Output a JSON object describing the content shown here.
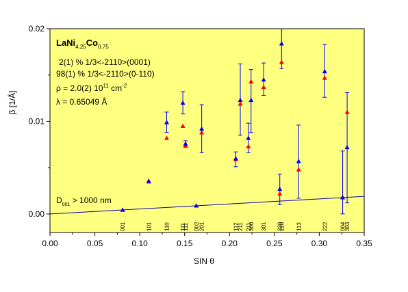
{
  "chart_data": {
    "type": "scatter",
    "xlabel": "SIN θ",
    "ylabel": "β [1/Å]",
    "xlim": [
      0.0,
      0.35
    ],
    "ylim": [
      -0.002,
      0.02
    ],
    "xticks": [
      "0.00",
      "0.05",
      "0.10",
      "0.15",
      "0.20",
      "0.25",
      "0.30",
      "0.35"
    ],
    "yticks": [
      "0.00",
      "0.01",
      "0.02"
    ],
    "grid": false,
    "background": "#ffff80",
    "colors": {
      "series_a": "#ff0000",
      "series_b": "#0000ff",
      "line": "#0000aa"
    },
    "annotations": {
      "formula_parts": [
        "LaNi",
        "4.25",
        "Co",
        "0.75"
      ],
      "line1": "2(1) %  1/3<-2110>(0001)",
      "line2": "98(1) %  1/3<-2110>(0-110)",
      "line3_parts": [
        "ρ = 2.0(2)  10",
        "11",
        " cm",
        "-2"
      ],
      "line4": "λ = 0.65049 Å",
      "dline_parts": [
        "D",
        "001",
        " > 1000 nm"
      ]
    },
    "line": {
      "x": [
        0.0,
        0.35
      ],
      "y": [
        0.0,
        0.0019
      ]
    },
    "points": [
      {
        "x": 0.081,
        "yr": 0.00045,
        "yb": 0.00045,
        "lo": null,
        "hi": null
      },
      {
        "x": 0.11,
        "yr": 0.0036,
        "yb": 0.0035,
        "lo": null,
        "hi": null
      },
      {
        "x": 0.13,
        "yr": 0.0082,
        "yb": 0.0099,
        "lo": 0.0088,
        "hi": 0.011
      },
      {
        "x": 0.148,
        "yr": 0.0095,
        "yb": 0.012,
        "lo": 0.0108,
        "hi": 0.0132
      },
      {
        "x": 0.151,
        "yr": 0.0074,
        "yb": 0.0076,
        "lo": 0.0072,
        "hi": 0.0079
      },
      {
        "x": 0.163,
        "yr": 0.0009,
        "yb": 0.0009,
        "lo": null,
        "hi": null
      },
      {
        "x": 0.169,
        "yr": 0.0088,
        "yb": 0.0092,
        "lo": 0.0066,
        "hi": 0.0118
      },
      {
        "x": 0.207,
        "yr": 0.0059,
        "yb": 0.006,
        "lo": 0.0051,
        "hi": 0.0067
      },
      {
        "x": 0.212,
        "yr": 0.0119,
        "yb": 0.0123,
        "lo": 0.0085,
        "hi": 0.0162
      },
      {
        "x": 0.221,
        "yr": 0.0073,
        "yb": 0.0082,
        "lo": 0.0066,
        "hi": 0.0098
      },
      {
        "x": 0.224,
        "yr": 0.0143,
        "yb": 0.0123,
        "lo": 0.0088,
        "hi": 0.0156
      },
      {
        "x": 0.238,
        "yr": 0.0137,
        "yb": 0.0145,
        "lo": 0.0128,
        "hi": 0.0163
      },
      {
        "x": 0.256,
        "yr": 0.0022,
        "yb": 0.0027,
        "lo": 0.001,
        "hi": 0.0043
      },
      {
        "x": 0.258,
        "yr": 0.0164,
        "yb": 0.0184,
        "lo": 0.0157,
        "hi": 0.0202
      },
      {
        "x": 0.277,
        "yr": 0.0048,
        "yb": 0.0057,
        "lo": 0.0017,
        "hi": 0.0096
      },
      {
        "x": 0.306,
        "yr": 0.0147,
        "yb": 0.0154,
        "lo": 0.0126,
        "hi": 0.0183
      },
      {
        "x": 0.326,
        "yr": 0.0018,
        "yb": 0.0018,
        "lo": 0.0,
        "hi": 0.0068
      },
      {
        "x": 0.331,
        "yr": 0.011,
        "yb": 0.0072,
        "lo": 0.0012,
        "hi": 0.0131
      }
    ],
    "hkl_labels": [
      {
        "x": 0.081,
        "text": "001"
      },
      {
        "x": 0.11,
        "text": "101"
      },
      {
        "x": 0.13,
        "text": "110"
      },
      {
        "x": 0.148,
        "text": "111"
      },
      {
        "x": 0.151,
        "text": "111"
      },
      {
        "x": 0.163,
        "text": "002"
      },
      {
        "x": 0.169,
        "text": "201"
      },
      {
        "x": 0.207,
        "text": "112"
      },
      {
        "x": 0.212,
        "text": "211"
      },
      {
        "x": 0.221,
        "text": "211"
      },
      {
        "x": 0.224,
        "text": "300"
      },
      {
        "x": 0.238,
        "text": "301"
      },
      {
        "x": 0.256,
        "text": "220"
      },
      {
        "x": 0.258,
        "text": "220"
      },
      {
        "x": 0.277,
        "text": "113"
      },
      {
        "x": 0.306,
        "text": "222"
      },
      {
        "x": 0.326,
        "text": "004"
      },
      {
        "x": 0.331,
        "text": "303"
      }
    ]
  }
}
